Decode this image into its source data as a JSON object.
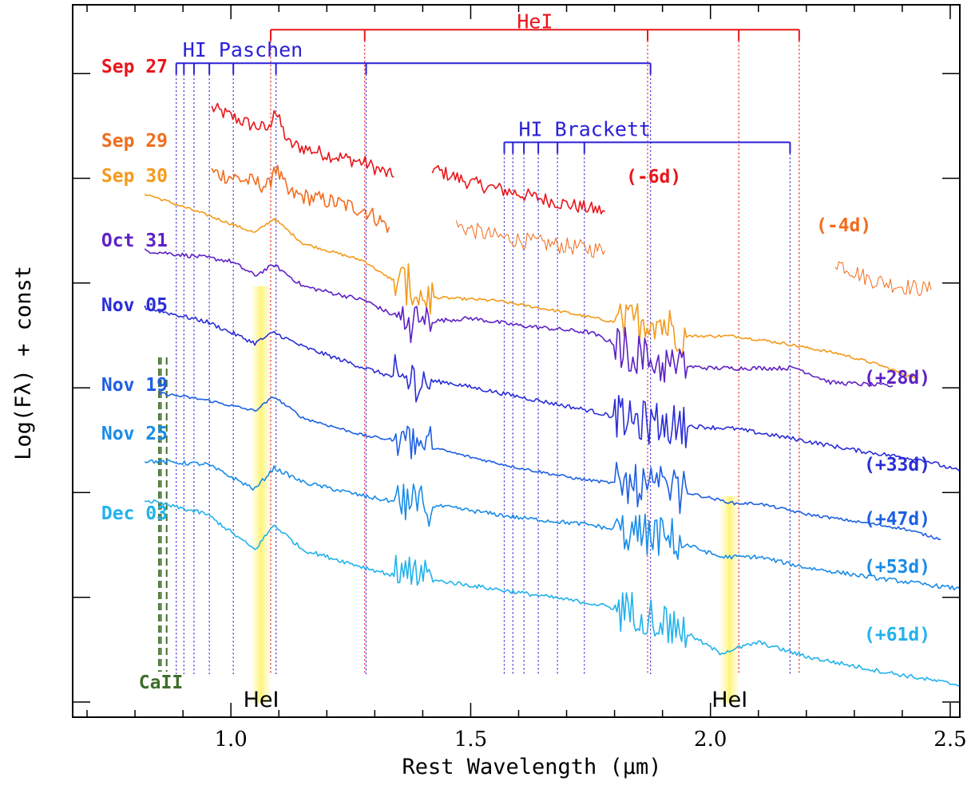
{
  "chart_data": {
    "type": "line",
    "title": "",
    "xlabel": "Rest Wavelength (μm)",
    "ylabel": "Log(Fλ) + const",
    "xlim": [
      0.67,
      2.52
    ],
    "ylim": [
      0,
      1
    ],
    "x_ticks": [
      "1.0",
      "1.5",
      "2.0",
      "2.5"
    ],
    "y_ticks_count": 7,
    "series": [
      {
        "name": "Sep 27",
        "phase": "(-6d)",
        "color": "#e8161b",
        "segments": [
          [
            [
              0.96,
              0.855
            ],
            [
              1.04,
              0.832
            ],
            [
              1.08,
              0.825
            ],
            [
              1.09,
              0.855
            ],
            [
              1.12,
              0.805
            ],
            [
              1.2,
              0.79
            ],
            [
              1.28,
              0.778
            ],
            [
              1.34,
              0.758
            ]
          ],
          [
            [
              1.42,
              0.77
            ],
            [
              1.5,
              0.75
            ],
            [
              1.6,
              0.735
            ],
            [
              1.7,
              0.72
            ],
            [
              1.78,
              0.71
            ]
          ]
        ]
      },
      {
        "name": "Sep 29",
        "phase": "(-4d)",
        "color": "#f26c1c",
        "segments": [
          [
            [
              0.96,
              0.765
            ],
            [
              1.04,
              0.752
            ],
            [
              1.08,
              0.745
            ],
            [
              1.09,
              0.775
            ],
            [
              1.12,
              0.735
            ],
            [
              1.2,
              0.725
            ],
            [
              1.28,
              0.712
            ],
            [
              1.33,
              0.688
            ]
          ],
          [
            [
              1.47,
              0.69
            ],
            [
              1.55,
              0.675
            ],
            [
              1.65,
              0.665
            ],
            [
              1.78,
              0.655
            ]
          ],
          [
            [
              2.26,
              0.64
            ],
            [
              2.33,
              0.615
            ],
            [
              2.4,
              0.605
            ],
            [
              2.46,
              0.6
            ]
          ]
        ]
      },
      {
        "name": "Sep 30",
        "color": "#f39a1b",
        "segments": [
          [
            [
              0.82,
              0.735
            ],
            [
              0.95,
              0.705
            ],
            [
              1.05,
              0.68
            ],
            [
              1.09,
              0.7
            ],
            [
              1.15,
              0.665
            ],
            [
              1.28,
              0.64
            ],
            [
              1.32,
              0.62
            ],
            [
              1.37,
              0.605
            ],
            [
              1.4,
              0.59
            ],
            [
              1.55,
              0.585
            ],
            [
              1.7,
              0.568
            ],
            [
              1.82,
              0.552
            ],
            [
              1.88,
              0.56
            ],
            [
              1.95,
              0.535
            ],
            [
              2.05,
              0.535
            ],
            [
              2.15,
              0.525
            ],
            [
              2.27,
              0.51
            ],
            [
              2.35,
              0.495
            ],
            [
              2.43,
              0.475
            ]
          ]
        ]
      },
      {
        "name": "Oct 31",
        "phase": "(+28d)",
        "color": "#5e21c4",
        "segments": [
          [
            [
              0.82,
              0.655
            ],
            [
              0.95,
              0.645
            ],
            [
              1.0,
              0.64
            ],
            [
              1.05,
              0.62
            ],
            [
              1.09,
              0.635
            ],
            [
              1.15,
              0.605
            ],
            [
              1.28,
              0.585
            ],
            [
              1.35,
              0.56
            ],
            [
              1.4,
              0.555
            ],
            [
              1.5,
              0.56
            ],
            [
              1.6,
              0.55
            ],
            [
              1.75,
              0.54
            ],
            [
              1.83,
              0.515
            ],
            [
              1.9,
              0.495
            ],
            [
              2.0,
              0.49
            ],
            [
              2.1,
              0.49
            ],
            [
              2.18,
              0.49
            ],
            [
              2.25,
              0.47
            ],
            [
              2.38,
              0.465
            ]
          ]
        ]
      },
      {
        "name": "Nov 05",
        "phase": "(+33d)",
        "color": "#2a2dd6",
        "segments": [
          [
            [
              0.82,
              0.575
            ],
            [
              0.95,
              0.555
            ],
            [
              1.05,
              0.525
            ],
            [
              1.09,
              0.54
            ],
            [
              1.15,
              0.52
            ],
            [
              1.28,
              0.49
            ],
            [
              1.35,
              0.475
            ],
            [
              1.45,
              0.47
            ],
            [
              1.6,
              0.45
            ],
            [
              1.75,
              0.43
            ],
            [
              1.84,
              0.415
            ],
            [
              1.92,
              0.41
            ],
            [
              2.05,
              0.405
            ],
            [
              2.18,
              0.39
            ],
            [
              2.3,
              0.375
            ],
            [
              2.45,
              0.36
            ],
            [
              2.52,
              0.345
            ]
          ]
        ]
      },
      {
        "name": "Nov 19",
        "phase": "(+47d)",
        "color": "#1e5fe3",
        "segments": [
          [
            [
              0.85,
              0.455
            ],
            [
              0.95,
              0.445
            ],
            [
              1.05,
              0.43
            ],
            [
              1.09,
              0.45
            ],
            [
              1.15,
              0.42
            ],
            [
              1.28,
              0.395
            ],
            [
              1.38,
              0.385
            ],
            [
              1.5,
              0.365
            ],
            [
              1.6,
              0.35
            ],
            [
              1.72,
              0.335
            ],
            [
              1.84,
              0.325
            ],
            [
              1.92,
              0.32
            ],
            [
              2.05,
              0.3
            ],
            [
              2.1,
              0.3
            ],
            [
              2.2,
              0.285
            ],
            [
              2.3,
              0.275
            ],
            [
              2.4,
              0.265
            ],
            [
              2.48,
              0.25
            ]
          ]
        ]
      },
      {
        "name": "Nov 25",
        "phase": "(+53d)",
        "color": "#1a8ce8",
        "segments": [
          [
            [
              0.82,
              0.36
            ],
            [
              0.95,
              0.355
            ],
            [
              1.05,
              0.32
            ],
            [
              1.09,
              0.35
            ],
            [
              1.15,
              0.33
            ],
            [
              1.28,
              0.31
            ],
            [
              1.36,
              0.3
            ],
            [
              1.45,
              0.295
            ],
            [
              1.6,
              0.28
            ],
            [
              1.75,
              0.27
            ],
            [
              1.86,
              0.255
            ],
            [
              1.92,
              0.25
            ],
            [
              2.02,
              0.225
            ],
            [
              2.1,
              0.225
            ],
            [
              2.2,
              0.21
            ],
            [
              2.35,
              0.195
            ],
            [
              2.52,
              0.18
            ]
          ]
        ]
      },
      {
        "name": "Dec 03",
        "phase": "(+61d)",
        "color": "#22b2ec",
        "segments": [
          [
            [
              0.82,
              0.305
            ],
            [
              0.95,
              0.285
            ],
            [
              1.05,
              0.235
            ],
            [
              1.09,
              0.27
            ],
            [
              1.15,
              0.235
            ],
            [
              1.28,
              0.21
            ],
            [
              1.36,
              0.195
            ],
            [
              1.45,
              0.19
            ],
            [
              1.6,
              0.175
            ],
            [
              1.75,
              0.16
            ],
            [
              1.86,
              0.145
            ],
            [
              1.92,
              0.13
            ],
            [
              2.02,
              0.09
            ],
            [
              2.1,
              0.105
            ],
            [
              2.2,
              0.085
            ],
            [
              2.35,
              0.065
            ],
            [
              2.52,
              0.045
            ]
          ]
        ]
      }
    ],
    "line_markers": [
      {
        "label": "HeI",
        "color": "#e8161b",
        "bar_y": 0.965,
        "bar_range": [
          1.083,
          2.185
        ],
        "lines": [
          1.083,
          1.279,
          1.869,
          2.059,
          2.185
        ]
      },
      {
        "label": "HI Paschen",
        "color": "#2a20d8",
        "bar_y": 0.918,
        "bar_range": [
          0.886,
          1.875
        ],
        "lines": [
          0.886,
          0.902,
          0.923,
          0.955,
          1.005,
          1.094,
          1.282,
          1.875
        ]
      },
      {
        "label": "HI Brackett",
        "color": "#2a20d8",
        "bar_y": 0.807,
        "bar_range": [
          1.57,
          2.166
        ],
        "lines": [
          1.57,
          1.588,
          1.611,
          1.641,
          1.681,
          1.737,
          2.166
        ]
      },
      {
        "label": "CaII",
        "color": "#3f6e2a",
        "lines": [
          0.85,
          0.854,
          0.866
        ]
      }
    ],
    "highlight_bands": [
      {
        "label": "HeI",
        "range": [
          1.043,
          1.083
        ]
      },
      {
        "label": "HeI",
        "range": [
          2.02,
          2.06
        ]
      }
    ]
  }
}
